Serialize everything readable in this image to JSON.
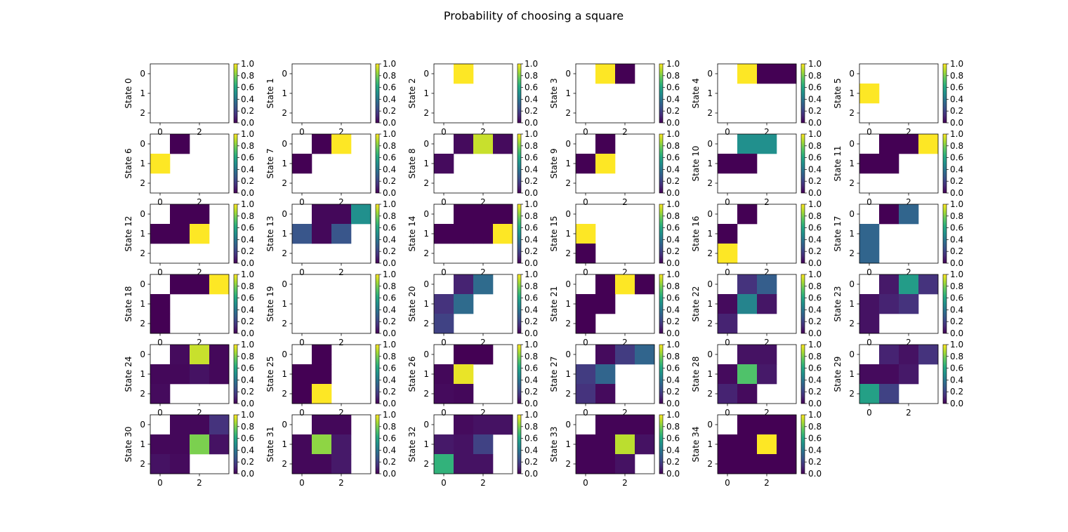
{
  "chart_data": {
    "type": "heatmap",
    "title": "Probability of choosing a square",
    "colormap": "viridis",
    "vmin": 0.0,
    "vmax": 1.0,
    "colorbar_ticks": [
      "0.0",
      "0.2",
      "0.4",
      "0.6",
      "0.8",
      "1.0"
    ],
    "x_ticks": [
      "0",
      "2"
    ],
    "y_ticks": [
      "0",
      "1",
      "2"
    ],
    "rows": 3,
    "cols": 4,
    "panels": [
      {
        "ylabel": "State 0",
        "grid": [
          [
            null,
            null,
            null,
            null
          ],
          [
            null,
            null,
            null,
            null
          ],
          [
            null,
            null,
            null,
            null
          ]
        ]
      },
      {
        "ylabel": "State 1",
        "grid": [
          [
            null,
            null,
            null,
            null
          ],
          [
            null,
            null,
            null,
            null
          ],
          [
            null,
            null,
            null,
            null
          ]
        ]
      },
      {
        "ylabel": "State 2",
        "grid": [
          [
            null,
            1.0,
            null,
            null
          ],
          [
            null,
            null,
            null,
            null
          ],
          [
            null,
            null,
            null,
            null
          ]
        ]
      },
      {
        "ylabel": "State 3",
        "grid": [
          [
            null,
            1.0,
            0.0,
            null
          ],
          [
            null,
            null,
            null,
            null
          ],
          [
            null,
            null,
            null,
            null
          ]
        ]
      },
      {
        "ylabel": "State 4",
        "grid": [
          [
            null,
            1.0,
            0.0,
            0.0
          ],
          [
            null,
            null,
            null,
            null
          ],
          [
            null,
            null,
            null,
            null
          ]
        ]
      },
      {
        "ylabel": "State 5",
        "grid": [
          [
            null,
            null,
            null,
            null
          ],
          [
            1.0,
            null,
            null,
            null
          ],
          [
            null,
            null,
            null,
            null
          ]
        ]
      },
      {
        "ylabel": "State 6",
        "grid": [
          [
            null,
            0.0,
            null,
            null
          ],
          [
            1.0,
            null,
            null,
            null
          ],
          [
            null,
            null,
            null,
            null
          ]
        ]
      },
      {
        "ylabel": "State 7",
        "grid": [
          [
            null,
            0.0,
            1.0,
            null
          ],
          [
            0.0,
            null,
            null,
            null
          ],
          [
            null,
            null,
            null,
            null
          ]
        ]
      },
      {
        "ylabel": "State 8",
        "grid": [
          [
            null,
            0.03,
            0.92,
            0.03
          ],
          [
            0.03,
            null,
            null,
            null
          ],
          [
            null,
            null,
            null,
            null
          ]
        ]
      },
      {
        "ylabel": "State 9",
        "grid": [
          [
            null,
            0.0,
            null,
            null
          ],
          [
            0.0,
            1.0,
            null,
            null
          ],
          [
            null,
            null,
            null,
            null
          ]
        ]
      },
      {
        "ylabel": "State 10",
        "grid": [
          [
            null,
            0.5,
            0.5,
            null
          ],
          [
            0.0,
            0.0,
            null,
            null
          ],
          [
            null,
            null,
            null,
            null
          ]
        ]
      },
      {
        "ylabel": "State 11",
        "grid": [
          [
            null,
            0.0,
            0.0,
            1.0
          ],
          [
            0.0,
            0.0,
            null,
            null
          ],
          [
            null,
            null,
            null,
            null
          ]
        ]
      },
      {
        "ylabel": "State 12",
        "grid": [
          [
            null,
            0.0,
            0.0,
            null
          ],
          [
            0.0,
            0.0,
            1.0,
            null
          ],
          [
            null,
            null,
            null,
            null
          ]
        ]
      },
      {
        "ylabel": "State 13",
        "grid": [
          [
            null,
            0.02,
            0.02,
            0.5
          ],
          [
            0.27,
            0.02,
            0.27,
            null
          ],
          [
            null,
            null,
            null,
            null
          ]
        ]
      },
      {
        "ylabel": "State 14",
        "grid": [
          [
            null,
            0.0,
            0.0,
            0.0
          ],
          [
            0.0,
            0.0,
            0.0,
            1.0
          ],
          [
            null,
            null,
            null,
            null
          ]
        ]
      },
      {
        "ylabel": "State 15",
        "grid": [
          [
            null,
            null,
            null,
            null
          ],
          [
            1.0,
            null,
            null,
            null
          ],
          [
            0.0,
            null,
            null,
            null
          ]
        ]
      },
      {
        "ylabel": "State 16",
        "grid": [
          [
            null,
            0.0,
            null,
            null
          ],
          [
            0.0,
            null,
            null,
            null
          ],
          [
            1.0,
            null,
            null,
            null
          ]
        ]
      },
      {
        "ylabel": "State 17",
        "grid": [
          [
            null,
            0.0,
            0.33,
            null
          ],
          [
            0.33,
            null,
            null,
            null
          ],
          [
            0.33,
            null,
            null,
            null
          ]
        ]
      },
      {
        "ylabel": "State 18",
        "grid": [
          [
            null,
            0.0,
            0.0,
            1.0
          ],
          [
            0.0,
            null,
            null,
            null
          ],
          [
            0.0,
            null,
            null,
            null
          ]
        ]
      },
      {
        "ylabel": "State 19",
        "grid": [
          [
            null,
            null,
            null,
            null
          ],
          [
            null,
            null,
            null,
            null
          ],
          [
            null,
            null,
            null,
            null
          ]
        ]
      },
      {
        "ylabel": "State 20",
        "grid": [
          [
            null,
            0.1,
            0.35,
            null
          ],
          [
            0.15,
            0.35,
            null,
            null
          ],
          [
            0.2,
            null,
            null,
            null
          ]
        ]
      },
      {
        "ylabel": "State 21",
        "grid": [
          [
            null,
            0.0,
            1.0,
            0.0
          ],
          [
            0.0,
            0.0,
            null,
            null
          ],
          [
            0.0,
            null,
            null,
            null
          ]
        ]
      },
      {
        "ylabel": "State 22",
        "grid": [
          [
            null,
            0.15,
            0.3,
            null
          ],
          [
            0.03,
            0.45,
            0.06,
            null
          ],
          [
            0.1,
            null,
            null,
            null
          ]
        ]
      },
      {
        "ylabel": "State 23",
        "grid": [
          [
            null,
            0.07,
            0.55,
            0.15
          ],
          [
            0.05,
            0.1,
            0.15,
            null
          ],
          [
            0.05,
            null,
            null,
            null
          ]
        ]
      },
      {
        "ylabel": "State 24",
        "grid": [
          [
            null,
            0.03,
            0.92,
            0.02
          ],
          [
            0.02,
            0.02,
            0.05,
            0.02
          ],
          [
            0.03,
            null,
            null,
            null
          ]
        ]
      },
      {
        "ylabel": "State 25",
        "grid": [
          [
            null,
            0.0,
            null,
            null
          ],
          [
            0.0,
            0.0,
            null,
            null
          ],
          [
            0.0,
            1.0,
            null,
            null
          ]
        ]
      },
      {
        "ylabel": "State 26",
        "grid": [
          [
            null,
            0.0,
            0.0,
            null
          ],
          [
            0.02,
            0.97,
            null,
            null
          ],
          [
            0.03,
            0.02,
            null,
            null
          ]
        ]
      },
      {
        "ylabel": "State 27",
        "grid": [
          [
            null,
            0.03,
            0.18,
            0.33
          ],
          [
            0.18,
            0.33,
            null,
            null
          ],
          [
            0.15,
            0.03,
            null,
            null
          ]
        ]
      },
      {
        "ylabel": "State 28",
        "grid": [
          [
            null,
            0.05,
            0.05,
            null
          ],
          [
            0.03,
            0.72,
            0.07,
            null
          ],
          [
            0.1,
            0.03,
            null,
            null
          ]
        ]
      },
      {
        "ylabel": "State 29",
        "grid": [
          [
            null,
            0.1,
            0.05,
            0.15
          ],
          [
            0.03,
            0.03,
            0.07,
            null
          ],
          [
            0.57,
            0.2,
            null,
            null
          ]
        ]
      },
      {
        "ylabel": "State 30",
        "grid": [
          [
            null,
            0.02,
            0.02,
            0.15
          ],
          [
            0.02,
            0.02,
            0.8,
            0.05
          ],
          [
            0.05,
            0.03,
            null,
            null
          ]
        ]
      },
      {
        "ylabel": "State 31",
        "grid": [
          [
            null,
            0.02,
            0.02,
            null
          ],
          [
            0.02,
            0.83,
            0.07,
            null
          ],
          [
            0.02,
            0.02,
            0.07,
            null
          ]
        ]
      },
      {
        "ylabel": "State 32",
        "grid": [
          [
            null,
            0.03,
            0.05,
            0.05
          ],
          [
            0.07,
            0.05,
            0.2,
            null
          ],
          [
            0.65,
            0.05,
            0.05,
            null
          ]
        ]
      },
      {
        "ylabel": "State 33",
        "grid": [
          [
            null,
            0.01,
            0.01,
            0.01
          ],
          [
            0.01,
            0.01,
            0.9,
            0.05
          ],
          [
            0.01,
            0.01,
            0.05,
            null
          ]
        ]
      },
      {
        "ylabel": "State 34",
        "grid": [
          [
            null,
            0.0,
            0.0,
            0.0
          ],
          [
            0.0,
            0.0,
            1.0,
            0.0
          ],
          [
            0.0,
            0.0,
            0.0,
            0.0
          ]
        ]
      }
    ]
  }
}
